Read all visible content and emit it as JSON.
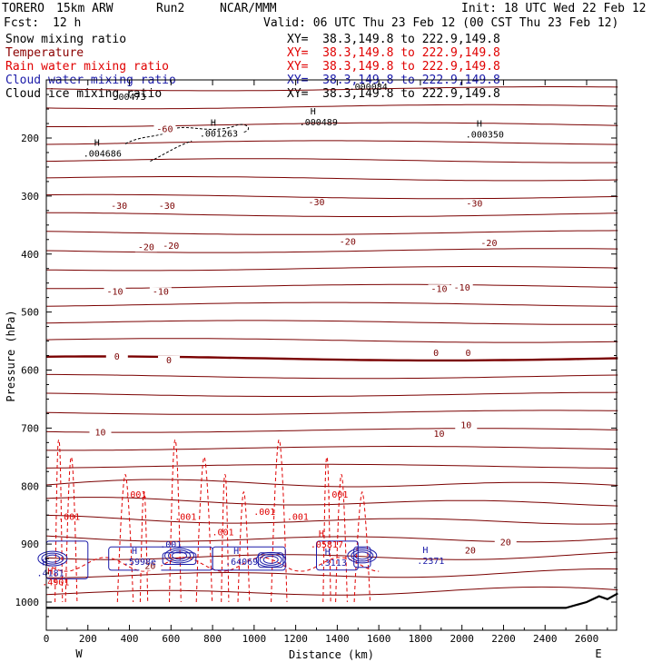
{
  "header": {
    "model": "TORERO",
    "resolution": "15km ARW",
    "run": "Run2",
    "org": "NCAR/MMM",
    "init": "Init: 18 UTC Wed 22 Feb 12",
    "fcst_label": "Fcst:",
    "fcst_value": "12 h",
    "valid": "Valid: 06 UTC Thu 23 Feb 12 (00 CST Thu 23 Feb 12)"
  },
  "legend": [
    {
      "name": "Snow mixing ratio",
      "color": "#000000",
      "xy": "XY=  38.3,149.8 to 222.9,149.8"
    },
    {
      "name": "Temperature",
      "color": "#8b0000",
      "xy": "XY=  38.3,149.8 to 222.9,149.8"
    },
    {
      "name": "Rain water mixing ratio",
      "color": "#e00000",
      "xy": "XY=  38.3,149.8 to 222.9,149.8"
    },
    {
      "name": "Cloud water mixing ratio",
      "color": "#1a1aa8",
      "xy": "XY=  38.3,149.8 to 222.9,149.8"
    },
    {
      "name": "Cloud ice mixing ratio",
      "color": "#000000",
      "xy": "XY=  38.3,149.8 to 222.9,149.8"
    }
  ],
  "chart_data": {
    "type": "cross-section contour",
    "xlabel": "Distance (km)",
    "ylabel": "Pressure (hPa)",
    "xlim": [
      0,
      2750
    ],
    "ylim": [
      1050,
      100
    ],
    "x_ticks": [
      0,
      200,
      400,
      600,
      800,
      1000,
      1200,
      1400,
      1600,
      1800,
      2000,
      2200,
      2400,
      2600
    ],
    "y_ticks": [
      200,
      300,
      400,
      500,
      600,
      700,
      800,
      900,
      1000
    ],
    "x_end_labels": {
      "left": "W",
      "right": "E"
    },
    "temperature_isotherms": [
      {
        "value": -60,
        "labels": [
          {
            "x": 570,
            "p": 190,
            "text": "-60"
          }
        ]
      },
      {
        "value": -30,
        "labels": [
          {
            "x": 350,
            "p": 322,
            "text": "-30"
          },
          {
            "x": 580,
            "p": 322,
            "text": "-30"
          },
          {
            "x": 1300,
            "p": 316,
            "text": "-30"
          },
          {
            "x": 2060,
            "p": 318,
            "text": "-30"
          }
        ]
      },
      {
        "value": -20,
        "labels": [
          {
            "x": 480,
            "p": 393,
            "text": "-20"
          },
          {
            "x": 600,
            "p": 391,
            "text": "-20"
          },
          {
            "x": 1450,
            "p": 384,
            "text": "-20"
          },
          {
            "x": 2130,
            "p": 386,
            "text": "-20"
          }
        ]
      },
      {
        "value": -10,
        "labels": [
          {
            "x": 330,
            "p": 470,
            "text": "-10"
          },
          {
            "x": 550,
            "p": 470,
            "text": "-10"
          },
          {
            "x": 1890,
            "p": 465,
            "text": "-10"
          },
          {
            "x": 2000,
            "p": 463,
            "text": "-10"
          }
        ]
      },
      {
        "value": 0,
        "labels": [
          {
            "x": 340,
            "p": 582,
            "text": "0"
          },
          {
            "x": 590,
            "p": 588,
            "text": "0"
          },
          {
            "x": 1875,
            "p": 576,
            "text": "0"
          },
          {
            "x": 2030,
            "p": 576,
            "text": "0"
          }
        ]
      },
      {
        "value": 10,
        "labels": [
          {
            "x": 260,
            "p": 713,
            "text": "10"
          },
          {
            "x": 1890,
            "p": 715,
            "text": "10"
          },
          {
            "x": 2020,
            "p": 700,
            "text": "10"
          }
        ]
      },
      {
        "value": 20,
        "labels": [
          {
            "x": 500,
            "p": 943,
            "text": "20"
          },
          {
            "x": 2040,
            "p": 916,
            "text": "20"
          },
          {
            "x": 2210,
            "p": 902,
            "text": "20"
          }
        ]
      }
    ],
    "rain_labels": [
      {
        "x": 110,
        "p": 858,
        "text": ".001"
      },
      {
        "x": 430,
        "p": 820,
        "text": ".001"
      },
      {
        "x": 670,
        "p": 858,
        "text": ".001"
      },
      {
        "x": 850,
        "p": 885,
        "text": ".001"
      },
      {
        "x": 1050,
        "p": 850,
        "text": ".001"
      },
      {
        "x": 1210,
        "p": 858,
        "text": ".001"
      },
      {
        "x": 1400,
        "p": 820,
        "text": ".001"
      }
    ],
    "maxima": [
      {
        "x": 270,
        "p": 232,
        "text": ".004686",
        "color": "#000000"
      },
      {
        "x": 830,
        "p": 198,
        "text": ".001263",
        "color": "#000000"
      },
      {
        "x": 1310,
        "p": 178,
        "text": ".000489",
        "color": "#000000"
      },
      {
        "x": 2110,
        "p": 199,
        "text": ".000350",
        "color": "#000000"
      },
      {
        "x": 450,
        "p": 936,
        "text": ".5998e",
        "color": "#1a1aa8"
      },
      {
        "x": 940,
        "p": 936,
        "text": ".64069",
        "color": "#1a1aa8"
      },
      {
        "x": 1380,
        "p": 937,
        "text": ".3113",
        "color": "#1a1aa8"
      },
      {
        "x": 1850,
        "p": 934,
        "text": ".2371",
        "color": "#1a1aa8"
      },
      {
        "x": 20,
        "p": 955,
        "text": ".4181",
        "color": "#1a1aa8"
      },
      {
        "x": 45,
        "p": 971,
        "text": ".4901",
        "color": "#e00000"
      },
      {
        "x": 1350,
        "p": 906,
        "text": ".05817",
        "color": "#e00000"
      }
    ],
    "other_labels": [
      {
        "x": 600,
        "p": 906,
        "text": ".001",
        "color": "#1a1aa8"
      },
      {
        "x": 400,
        "p": 134,
        "text": ".00473",
        "color": "#000000"
      },
      {
        "x": 1550,
        "p": 117,
        "text": ".000084",
        "color": "#000000"
      }
    ],
    "terrain": [
      {
        "x": 0,
        "p": 1010
      },
      {
        "x": 2500,
        "p": 1010
      },
      {
        "x": 2600,
        "p": 1000
      },
      {
        "x": 2660,
        "p": 990
      },
      {
        "x": 2700,
        "p": 995
      },
      {
        "x": 2750,
        "p": 985
      }
    ]
  }
}
